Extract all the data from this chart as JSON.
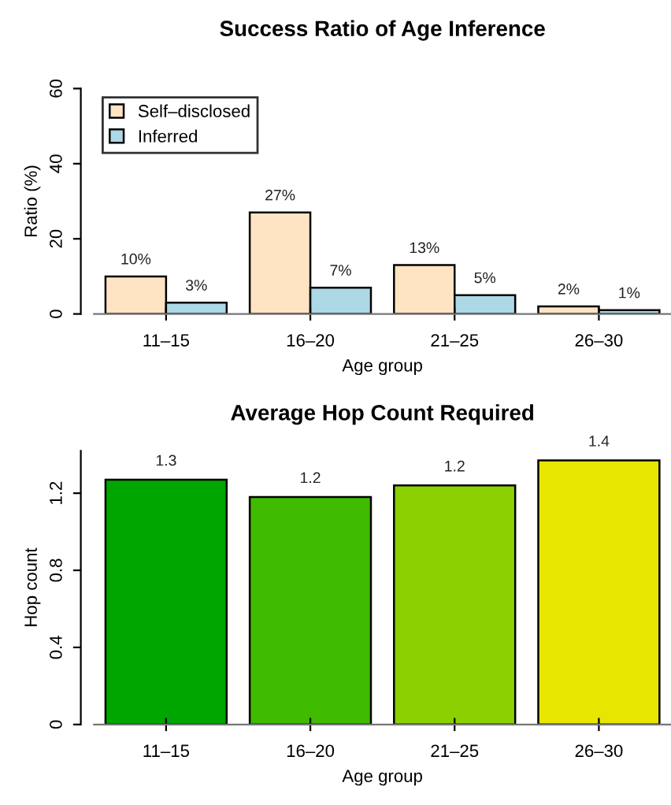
{
  "chart_data": [
    {
      "type": "bar",
      "title": "Success Ratio of Age Inference",
      "xlabel": "Age group",
      "ylabel": "Ratio (%)",
      "categories": [
        "11–15",
        "16–20",
        "21–25",
        "26–30"
      ],
      "series": [
        {
          "name": "Self–disclosed",
          "color": "#ffe4c4",
          "values": [
            10,
            27,
            13,
            2
          ],
          "value_labels": [
            "10%",
            "27%",
            "13%",
            "2%"
          ]
        },
        {
          "name": "Inferred",
          "color": "#add8e6",
          "values": [
            3,
            7,
            5,
            1
          ],
          "value_labels": [
            "3%",
            "7%",
            "5%",
            "1%"
          ]
        }
      ],
      "ylim": [
        0,
        60
      ],
      "yticks": [
        0,
        20,
        40,
        60
      ],
      "legend": "top left",
      "grid": false
    },
    {
      "type": "bar",
      "title": "Average Hop Count Required",
      "xlabel": "Age group",
      "ylabel": "Hop count",
      "categories": [
        "11–15",
        "16–20",
        "21–25",
        "26–30"
      ],
      "values": [
        1.27,
        1.18,
        1.24,
        1.37
      ],
      "value_labels": [
        "1.3",
        "1.2",
        "1.2",
        "1.4"
      ],
      "colors": [
        "#00a600",
        "#3fbb00",
        "#8bd000",
        "#e6e600"
      ],
      "ylim": [
        0,
        1.42
      ],
      "yticks": [
        0,
        0.4,
        0.8,
        1.2
      ],
      "grid": false
    }
  ]
}
